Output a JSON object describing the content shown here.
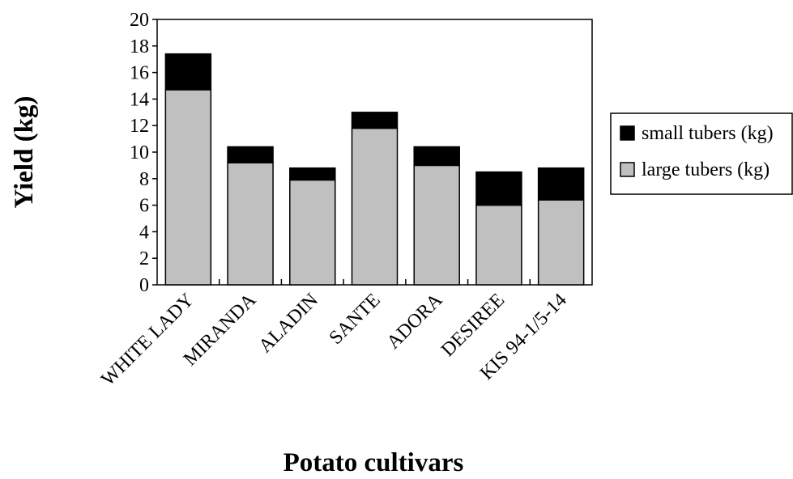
{
  "chart_data": {
    "type": "bar",
    "stacked": true,
    "categories": [
      "WHITE LADY",
      "MIRANDA",
      "ALADIN",
      "SANTE",
      "ADORA",
      "DESIREE",
      "KIS 94-1/5-14"
    ],
    "series": [
      {
        "name": "large tubers (kg)",
        "color": "#c0c0c0",
        "values": [
          14.7,
          9.2,
          7.9,
          11.8,
          9.0,
          6.0,
          6.4
        ]
      },
      {
        "name": "small tubers (kg)",
        "color": "#000000",
        "values": [
          2.7,
          1.2,
          0.9,
          1.2,
          1.4,
          2.5,
          2.4
        ]
      }
    ],
    "xlabel": "Potato cultivars",
    "ylabel": "Yield (kg)",
    "ylim": [
      0,
      20
    ],
    "yticks": [
      "0",
      "2",
      "4",
      "6",
      "8",
      "10",
      "12",
      "14",
      "16",
      "18",
      "20"
    ],
    "legend": {
      "position": "right",
      "entries": [
        "small tubers (kg)",
        "large tubers (kg)"
      ]
    },
    "grid": false
  }
}
